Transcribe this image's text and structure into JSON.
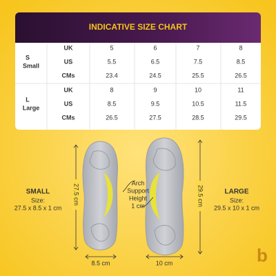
{
  "header": {
    "title": "INDICATIVE SIZE CHART"
  },
  "table": {
    "groups": [
      {
        "size": "S",
        "name": "Small",
        "rows": [
          [
            "UK",
            "5",
            "6",
            "7",
            "8"
          ],
          [
            "US",
            "5.5",
            "6.5",
            "7.5",
            "8.5"
          ],
          [
            "CMs",
            "23.4",
            "24.5",
            "25.5",
            "26.5"
          ]
        ]
      },
      {
        "size": "L",
        "name": "Large",
        "rows": [
          [
            "UK",
            "8",
            "9",
            "10",
            "11"
          ],
          [
            "US",
            "8.5",
            "9.5",
            "10.5",
            "11.5"
          ],
          [
            "CMs",
            "26.5",
            "27.5",
            "28.5",
            "29.5"
          ]
        ]
      }
    ]
  },
  "small": {
    "title": "SMALL",
    "label": "Size:",
    "size": "27.5 x 8.5 x 1 cm",
    "length": "27.5 cm",
    "width": "8.5 cm"
  },
  "large": {
    "title": "LARGE",
    "label": "Size:",
    "size": "29.5 x 10 x 1 cm",
    "length": "29.5 cm",
    "width": "10 cm"
  },
  "arch": {
    "lines": [
      "Arch",
      "Support",
      "Height",
      "1 cm"
    ]
  },
  "logo": "b"
}
